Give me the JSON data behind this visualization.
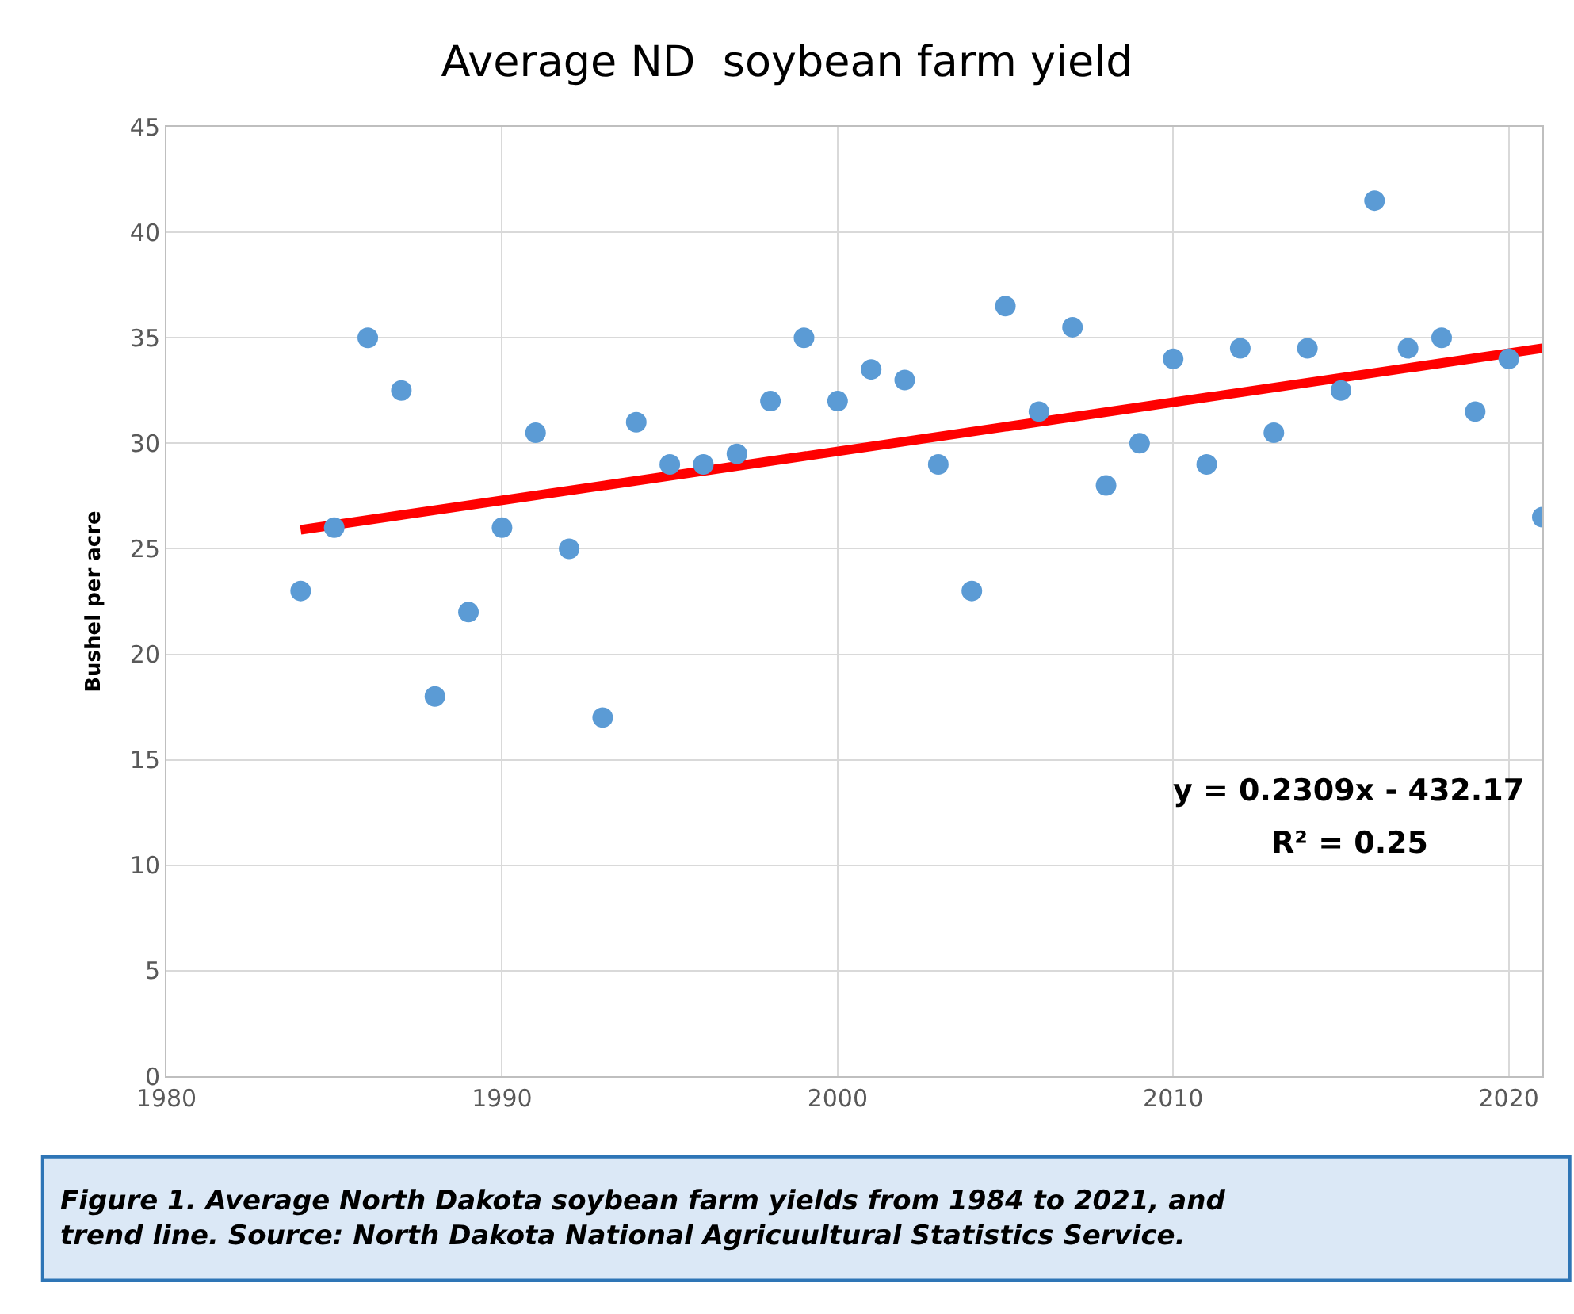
{
  "chart_data": {
    "type": "scatter",
    "title": "Average ND  soybean farm yield",
    "ylabel": "Bushel per acre",
    "x": [
      1984,
      1985,
      1986,
      1987,
      1988,
      1989,
      1990,
      1991,
      1992,
      1993,
      1994,
      1995,
      1996,
      1997,
      1998,
      1999,
      2000,
      2001,
      2002,
      2003,
      2004,
      2005,
      2006,
      2007,
      2008,
      2009,
      2010,
      2011,
      2012,
      2013,
      2014,
      2015,
      2016,
      2017,
      2018,
      2019,
      2020,
      2021
    ],
    "series": [
      {
        "color": "#5b9bd5",
        "marker": "circle",
        "values": [
          23,
          26,
          35,
          32.5,
          18,
          22,
          26,
          30.5,
          25,
          17,
          31,
          29,
          29,
          29.5,
          32,
          35,
          32,
          33.5,
          33,
          29,
          23,
          36.5,
          31.5,
          35.5,
          28,
          30,
          34,
          29,
          34.5,
          30.5,
          34.5,
          32.5,
          41.5,
          34.5,
          35,
          31.5,
          34,
          26.5
        ]
      },
      {
        "type": "line",
        "color": "#ff0000",
        "x": [
          1984,
          2021
        ],
        "values": [
          25.9,
          34.5
        ],
        "marker": "none",
        "line_style": "solid"
      }
    ],
    "xlim": [
      1980,
      2021
    ],
    "xticks": [
      1980,
      1990,
      2000,
      2010,
      2020
    ],
    "ylim": [
      0,
      45
    ],
    "yticks": [
      0,
      5,
      10,
      15,
      20,
      25,
      30,
      35,
      40,
      45
    ],
    "grid": true,
    "legend": false,
    "annotations": [
      "y = 0.2309x - 432.17",
      "R² = 0.25",
      "Figure 1. Average North Dakota soybean farm yields from 1984 to 2021, and trend line. Source: North Dakota National Agricuultural Statistics Service."
    ]
  }
}
